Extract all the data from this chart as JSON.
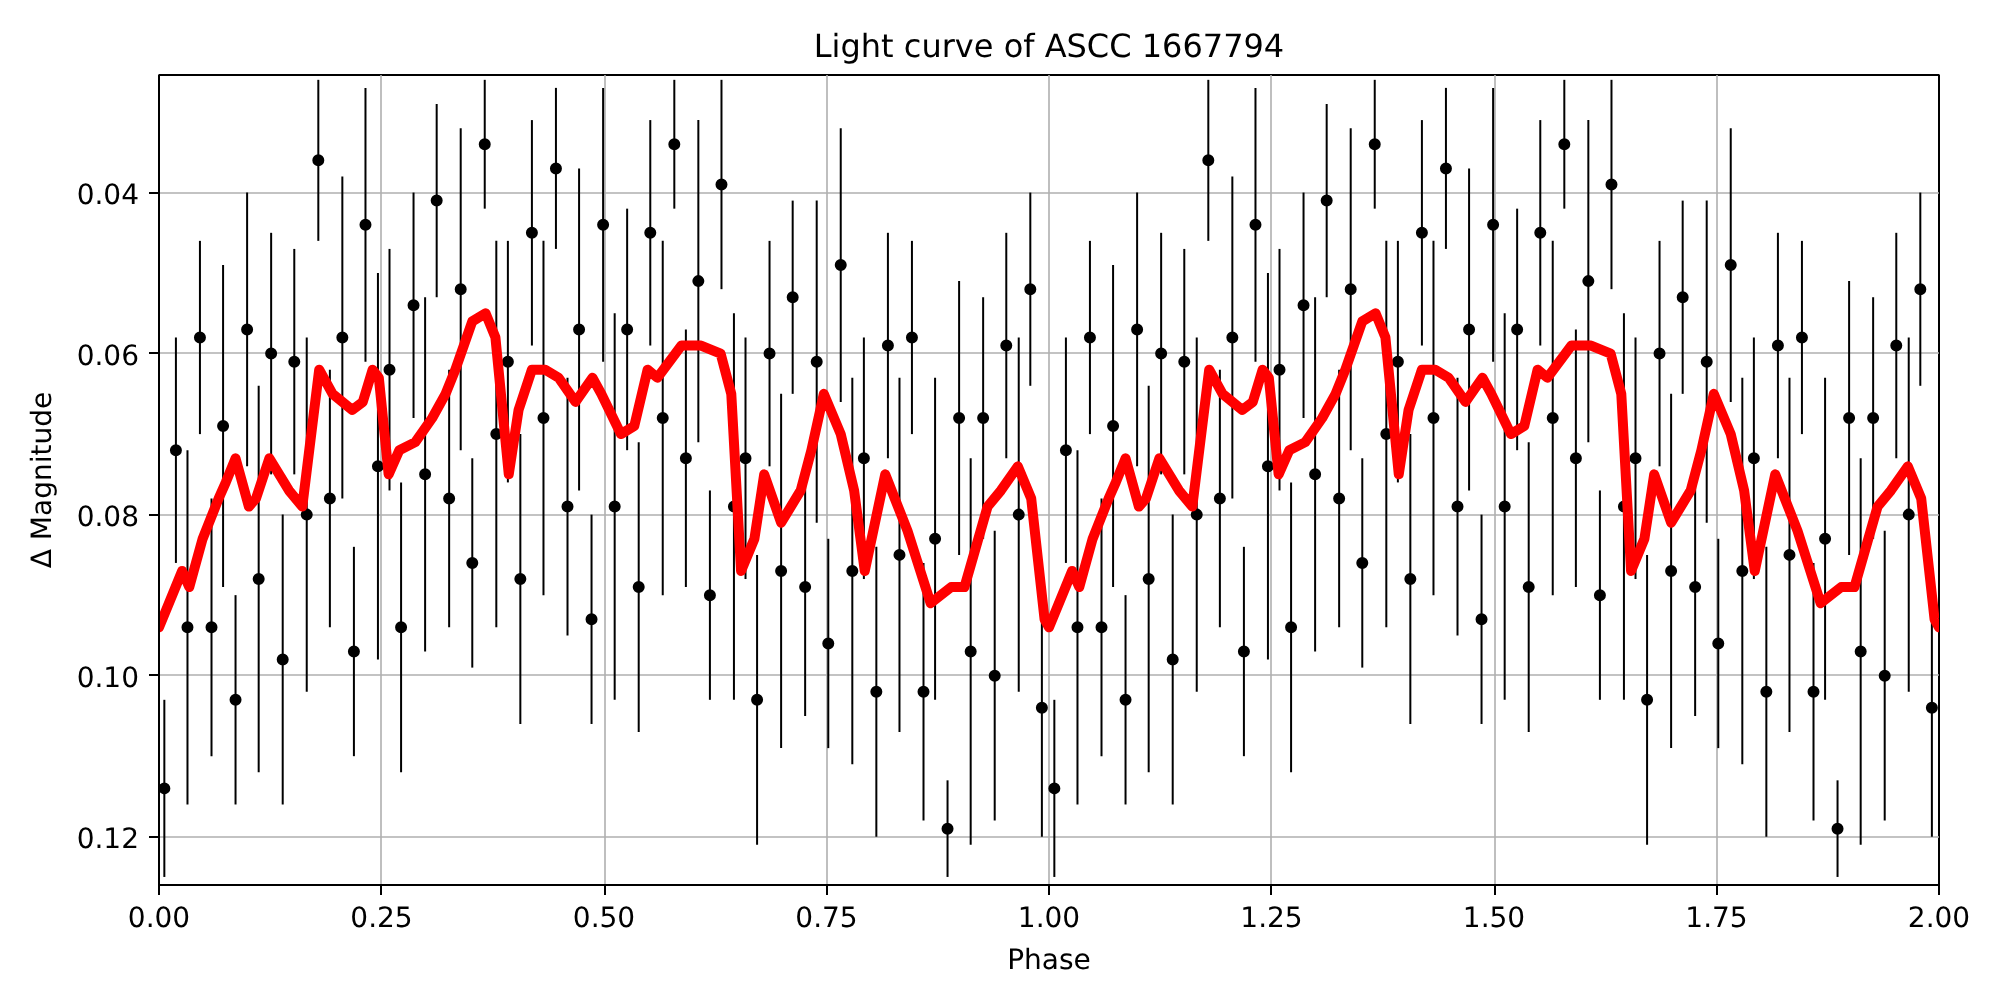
{
  "chart_data": {
    "type": "scatter",
    "title": "Light curve of ASCC 1667794",
    "xlabel": "Phase",
    "ylabel": "Δ Magnitude",
    "xlim": [
      0,
      2
    ],
    "ylim": [
      0.126,
      0.0254
    ],
    "xticks": [
      {
        "value": 0,
        "label": "0.00"
      },
      0.25,
      {
        "value": 0.5,
        "label": "0.50"
      },
      0.75,
      {
        "value": 1,
        "label": "1.00"
      },
      1.25,
      {
        "value": 1.5,
        "label": "1.50"
      },
      1.75,
      {
        "value": 2,
        "label": "2.00"
      }
    ],
    "yticks": [
      0.04,
      0.06,
      0.08,
      {
        "value": 0.1,
        "label": "0.10"
      },
      0.12
    ],
    "grid": true,
    "series": [
      {
        "color": "#000000",
        "marker": "circle",
        "x": [
          0.006,
          0.019,
          0.032,
          0.046,
          0.059,
          0.072,
          0.086,
          0.099,
          0.112,
          0.126,
          0.139,
          0.152,
          0.166,
          0.179,
          0.192,
          0.206,
          0.219,
          0.232,
          0.246,
          0.259,
          0.272,
          0.286,
          0.299,
          0.312,
          0.326,
          0.339,
          0.352,
          0.366,
          0.379,
          0.392,
          0.406,
          0.419,
          0.432,
          0.446,
          0.459,
          0.472,
          0.486,
          0.499,
          0.512,
          0.526,
          0.539,
          0.552,
          0.566,
          0.579,
          0.592,
          0.606,
          0.619,
          0.632,
          0.646,
          0.659,
          0.672,
          0.686,
          0.699,
          0.712,
          0.726,
          0.739,
          0.752,
          0.766,
          0.779,
          0.792,
          0.806,
          0.819,
          0.832,
          0.846,
          0.859,
          0.872,
          0.886,
          0.899,
          0.912,
          0.926,
          0.939,
          0.952,
          0.966,
          0.979,
          0.992,
          1.006,
          1.019,
          1.032,
          1.046,
          1.059,
          1.072,
          1.086,
          1.099,
          1.112,
          1.126,
          1.139,
          1.152,
          1.166,
          1.179,
          1.192,
          1.206,
          1.219,
          1.232,
          1.246,
          1.259,
          1.272,
          1.286,
          1.299,
          1.312,
          1.326,
          1.339,
          1.352,
          1.366,
          1.379,
          1.392,
          1.406,
          1.419,
          1.432,
          1.446,
          1.459,
          1.472,
          1.486,
          1.499,
          1.512,
          1.526,
          1.539,
          1.552,
          1.566,
          1.579,
          1.592,
          1.606,
          1.619,
          1.632,
          1.646,
          1.659,
          1.672,
          1.686,
          1.699,
          1.712,
          1.726,
          1.739,
          1.752,
          1.766,
          1.779,
          1.792,
          1.806,
          1.819,
          1.832,
          1.846,
          1.859,
          1.872,
          1.886,
          1.899,
          1.912,
          1.926,
          1.939,
          1.952,
          1.966,
          1.979,
          1.992
        ],
        "values": [
          0.114,
          0.072,
          0.094,
          0.058,
          0.094,
          0.069,
          0.103,
          0.057,
          0.088,
          0.06,
          0.098,
          0.061,
          0.08,
          0.036,
          0.078,
          0.058,
          0.097,
          0.044,
          0.074,
          0.062,
          0.094,
          0.054,
          0.075,
          0.041,
          0.078,
          0.052,
          0.086,
          0.034,
          0.07,
          0.061,
          0.088,
          0.045,
          0.068,
          0.037,
          0.079,
          0.057,
          0.093,
          0.044,
          0.079,
          0.057,
          0.089,
          0.045,
          0.068,
          0.034,
          0.073,
          0.051,
          0.09,
          0.039,
          0.079,
          0.073,
          0.103,
          0.06,
          0.087,
          0.053,
          0.089,
          0.061,
          0.096,
          0.049,
          0.087,
          0.073,
          0.102,
          0.059,
          0.085,
          0.058,
          0.102,
          0.083,
          0.119,
          0.068,
          0.097,
          0.068,
          0.1,
          0.059,
          0.08,
          0.052,
          0.104,
          0.114,
          0.072,
          0.094,
          0.058,
          0.094,
          0.069,
          0.103,
          0.057,
          0.088,
          0.06,
          0.098,
          0.061,
          0.08,
          0.036,
          0.078,
          0.058,
          0.097,
          0.044,
          0.074,
          0.062,
          0.094,
          0.054,
          0.075,
          0.041,
          0.078,
          0.052,
          0.086,
          0.034,
          0.07,
          0.061,
          0.088,
          0.045,
          0.068,
          0.037,
          0.079,
          0.057,
          0.093,
          0.044,
          0.079,
          0.057,
          0.089,
          0.045,
          0.068,
          0.034,
          0.073,
          0.051,
          0.09,
          0.039,
          0.079,
          0.073,
          0.103,
          0.06,
          0.087,
          0.053,
          0.089,
          0.061,
          0.096,
          0.049,
          0.087,
          0.073,
          0.102,
          0.059,
          0.085,
          0.058,
          0.102,
          0.083,
          0.119,
          0.068,
          0.097,
          0.068,
          0.1,
          0.059,
          0.08,
          0.052,
          0.104
        ],
        "errors": [
          0.011,
          0.014,
          0.022,
          0.012,
          0.016,
          0.02,
          0.013,
          0.017,
          0.024,
          0.015,
          0.018,
          0.014,
          0.022,
          0.01,
          0.016,
          0.02,
          0.013,
          0.017,
          0.024,
          0.015,
          0.018,
          0.014,
          0.022,
          0.012,
          0.016,
          0.02,
          0.013,
          0.008,
          0.024,
          0.015,
          0.018,
          0.014,
          0.022,
          0.01,
          0.016,
          0.02,
          0.013,
          0.017,
          0.024,
          0.015,
          0.018,
          0.014,
          0.022,
          0.008,
          0.016,
          0.02,
          0.013,
          0.013,
          0.024,
          0.015,
          0.018,
          0.014,
          0.022,
          0.012,
          0.016,
          0.02,
          0.013,
          0.017,
          0.024,
          0.015,
          0.018,
          0.014,
          0.022,
          0.012,
          0.016,
          0.02,
          0.006,
          0.017,
          0.024,
          0.015,
          0.018,
          0.014,
          0.022,
          0.012,
          0.016,
          0.011,
          0.014,
          0.022,
          0.012,
          0.016,
          0.02,
          0.013,
          0.017,
          0.024,
          0.015,
          0.018,
          0.014,
          0.022,
          0.01,
          0.016,
          0.02,
          0.013,
          0.017,
          0.024,
          0.015,
          0.018,
          0.014,
          0.022,
          0.012,
          0.016,
          0.02,
          0.013,
          0.008,
          0.024,
          0.015,
          0.018,
          0.014,
          0.022,
          0.01,
          0.016,
          0.02,
          0.013,
          0.017,
          0.024,
          0.015,
          0.018,
          0.014,
          0.022,
          0.008,
          0.016,
          0.02,
          0.013,
          0.013,
          0.024,
          0.015,
          0.018,
          0.014,
          0.022,
          0.012,
          0.016,
          0.02,
          0.013,
          0.017,
          0.024,
          0.015,
          0.018,
          0.014,
          0.022,
          0.012,
          0.016,
          0.02,
          0.006,
          0.017,
          0.024,
          0.015,
          0.018,
          0.014,
          0.022,
          0.012,
          0.016
        ]
      },
      {
        "type": "line",
        "color": "#ff0000",
        "x": [
          0,
          0.026,
          0.034,
          0.049,
          0.067,
          0.075,
          0.086,
          0.101,
          0.109,
          0.124,
          0.146,
          0.161,
          0.18,
          0.195,
          0.217,
          0.229,
          0.24,
          0.247,
          0.258,
          0.27,
          0.288,
          0.307,
          0.322,
          0.333,
          0.352,
          0.367,
          0.378,
          0.393,
          0.404,
          0.419,
          0.434,
          0.449,
          0.468,
          0.487,
          0.497,
          0.519,
          0.534,
          0.549,
          0.56,
          0.587,
          0.609,
          0.631,
          0.643,
          0.654,
          0.669,
          0.68,
          0.699,
          0.721,
          0.733,
          0.747,
          0.766,
          0.781,
          0.793,
          0.816,
          0.841,
          0.867,
          0.89,
          0.905,
          0.931,
          0.946,
          0.965,
          0.98,
          0.995,
          1,
          1.026,
          1.034,
          1.049,
          1.067,
          1.075,
          1.086,
          1.101,
          1.109,
          1.124,
          1.146,
          1.161,
          1.18,
          1.195,
          1.217,
          1.229,
          1.24,
          1.247,
          1.258,
          1.27,
          1.288,
          1.307,
          1.322,
          1.333,
          1.352,
          1.367,
          1.378,
          1.393,
          1.404,
          1.419,
          1.434,
          1.449,
          1.468,
          1.487,
          1.497,
          1.519,
          1.534,
          1.549,
          1.56,
          1.587,
          1.609,
          1.631,
          1.643,
          1.654,
          1.669,
          1.68,
          1.699,
          1.721,
          1.733,
          1.747,
          1.766,
          1.781,
          1.793,
          1.816,
          1.841,
          1.867,
          1.89,
          1.905,
          1.931,
          1.946,
          1.965,
          1.98,
          1.995,
          2
        ],
        "values": [
          0.094,
          0.087,
          0.089,
          0.083,
          0.078,
          0.076,
          0.073,
          0.079,
          0.078,
          0.073,
          0.077,
          0.079,
          0.062,
          0.065,
          0.067,
          0.066,
          0.062,
          0.063,
          0.075,
          0.072,
          0.071,
          0.068,
          0.065,
          0.062,
          0.056,
          0.055,
          0.058,
          0.075,
          0.067,
          0.062,
          0.062,
          0.063,
          0.066,
          0.063,
          0.065,
          0.07,
          0.069,
          0.062,
          0.063,
          0.059,
          0.059,
          0.06,
          0.065,
          0.087,
          0.083,
          0.075,
          0.081,
          0.077,
          0.072,
          0.065,
          0.07,
          0.077,
          0.087,
          0.075,
          0.082,
          0.091,
          0.089,
          0.089,
          0.079,
          0.077,
          0.074,
          0.078,
          0.093,
          0.094,
          0.087,
          0.089,
          0.083,
          0.078,
          0.076,
          0.073,
          0.079,
          0.078,
          0.073,
          0.077,
          0.079,
          0.062,
          0.065,
          0.067,
          0.066,
          0.062,
          0.063,
          0.075,
          0.072,
          0.071,
          0.068,
          0.065,
          0.062,
          0.056,
          0.055,
          0.058,
          0.075,
          0.067,
          0.062,
          0.062,
          0.063,
          0.066,
          0.063,
          0.065,
          0.07,
          0.069,
          0.062,
          0.063,
          0.059,
          0.059,
          0.06,
          0.065,
          0.087,
          0.083,
          0.075,
          0.081,
          0.077,
          0.072,
          0.065,
          0.07,
          0.077,
          0.087,
          0.075,
          0.082,
          0.091,
          0.089,
          0.089,
          0.079,
          0.077,
          0.074,
          0.078,
          0.093,
          0.094
        ]
      }
    ]
  }
}
